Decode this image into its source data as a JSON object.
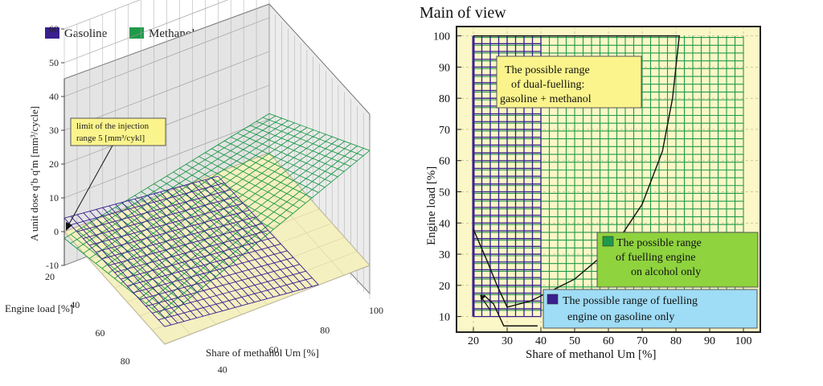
{
  "chart_data": [
    {
      "type": "surface3d",
      "legend": [
        {
          "name": "Gasoline",
          "color": "#3a1f8f"
        },
        {
          "name": "Methanol",
          "color": "#1f9a4a"
        }
      ],
      "z_axis": {
        "label": "A unit dose  q′b  q′m  [mm³/cycle]",
        "ticks": [
          "-10",
          "0",
          "10",
          "20",
          "30",
          "40",
          "50",
          "60"
        ]
      },
      "y_axis": {
        "label": "Engine load  [%]",
        "ticks": [
          "20",
          "40",
          "60",
          "80",
          "100"
        ]
      },
      "x_axis": {
        "label": "Share of methanol  Um  [%]",
        "ticks": [
          "20",
          "40",
          "60",
          "80",
          "100"
        ]
      },
      "annotation": {
        "line1": "limit of the injection",
        "line2": "range 5 [mm³/cykl]"
      },
      "colors": {
        "floor": "#f5f0c0",
        "wall": "#e6e6e6",
        "gasoline": "#3a1f8f",
        "methanol": "#1f9a4a"
      }
    },
    {
      "type": "region",
      "title": "Main of view",
      "xlabel": "Share of methanol  Um  [%]",
      "ylabel": "Engine load  [%]",
      "xlim": [
        15,
        105
      ],
      "ylim": [
        5,
        103
      ],
      "x_ticks": [
        20,
        30,
        40,
        50,
        60,
        70,
        80,
        90,
        100
      ],
      "y_ticks": [
        10,
        20,
        30,
        40,
        50,
        60,
        70,
        80,
        90,
        100
      ],
      "gasoline_region": {
        "x": [
          20,
          40
        ],
        "y": [
          10,
          100
        ]
      },
      "methanol_region": {
        "x": [
          20,
          100
        ],
        "y": [
          12,
          100
        ]
      },
      "dual_boundary": [
        [
          20,
          100
        ],
        [
          81,
          100
        ],
        [
          79,
          80
        ],
        [
          76,
          63
        ],
        [
          70,
          46
        ],
        [
          62,
          33
        ],
        [
          50,
          22
        ],
        [
          37,
          15
        ],
        [
          30,
          13
        ],
        [
          27,
          20
        ],
        [
          24,
          28
        ],
        [
          20,
          38
        ]
      ],
      "low_path": [
        [
          23,
          17
        ],
        [
          26,
          14
        ],
        [
          29,
          7
        ],
        [
          39,
          7
        ]
      ],
      "labels": {
        "dual": [
          "The possible range",
          "of dual-fuelling:",
          "gasoline + methanol"
        ],
        "alcohol": [
          "The possible range",
          "of fuelling engine",
          "on alcohol only"
        ],
        "gasoline": [
          "The possible range of fuelling",
          "engine on gasoline only"
        ]
      },
      "colors": {
        "bg": "#fbf7c6",
        "gasoline": "#3a1f8f",
        "methanol": "#1f9a4a",
        "dual_box": "#fbf48c",
        "alcohol_box": "#8fd33f",
        "gasoline_box": "#9fdcf5"
      }
    }
  ]
}
